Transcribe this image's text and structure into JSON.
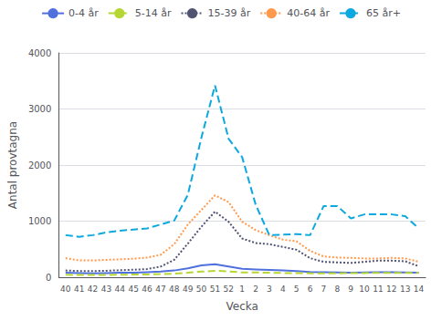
{
  "chart_data": {
    "type": "line",
    "categories": [
      "40",
      "41",
      "42",
      "43",
      "44",
      "45",
      "46",
      "47",
      "48",
      "49",
      "50",
      "51",
      "52",
      "1",
      "2",
      "3",
      "4",
      "5",
      "6",
      "7",
      "8",
      "9",
      "10",
      "11",
      "12",
      "13",
      "14"
    ],
    "series": [
      {
        "name": "0-4 år",
        "line_style": "solid",
        "values": [
          80,
          75,
          70,
          75,
          80,
          80,
          90,
          100,
          120,
          160,
          210,
          230,
          190,
          150,
          140,
          130,
          120,
          110,
          95,
          90,
          85,
          80,
          85,
          90,
          90,
          85,
          80
        ]
      },
      {
        "name": "5-14 år",
        "line_style": "dashed",
        "values": [
          45,
          40,
          40,
          42,
          45,
          48,
          50,
          55,
          65,
          80,
          100,
          115,
          105,
          85,
          85,
          80,
          75,
          75,
          70,
          70,
          70,
          72,
          75,
          78,
          78,
          78,
          78
        ]
      },
      {
        "name": "15-39 år",
        "line_style": "dotted",
        "values": [
          120,
          110,
          110,
          115,
          125,
          135,
          145,
          190,
          310,
          600,
          900,
          1170,
          990,
          690,
          610,
          590,
          540,
          490,
          340,
          275,
          265,
          255,
          275,
          295,
          295,
          285,
          195
        ]
      },
      {
        "name": "40-64 år",
        "line_style": "dotted",
        "values": [
          340,
          300,
          300,
          310,
          320,
          330,
          350,
          400,
          590,
          940,
          1200,
          1460,
          1340,
          990,
          840,
          750,
          670,
          640,
          470,
          370,
          350,
          345,
          335,
          335,
          345,
          335,
          275
        ]
      },
      {
        "name": "65 år+",
        "line_style": "dashed",
        "values": [
          750,
          720,
          750,
          800,
          830,
          850,
          870,
          940,
          1010,
          1470,
          2490,
          3420,
          2470,
          2140,
          1290,
          750,
          760,
          770,
          750,
          1270,
          1270,
          1050,
          1120,
          1120,
          1120,
          1090,
          870
        ]
      }
    ],
    "xlabel": "Vecka",
    "ylabel": "Antal provtagna",
    "ylim": [
      0,
      4000
    ],
    "yticks": [
      0,
      1000,
      2000,
      3000,
      4000
    ],
    "grid": true,
    "legend": "top"
  }
}
